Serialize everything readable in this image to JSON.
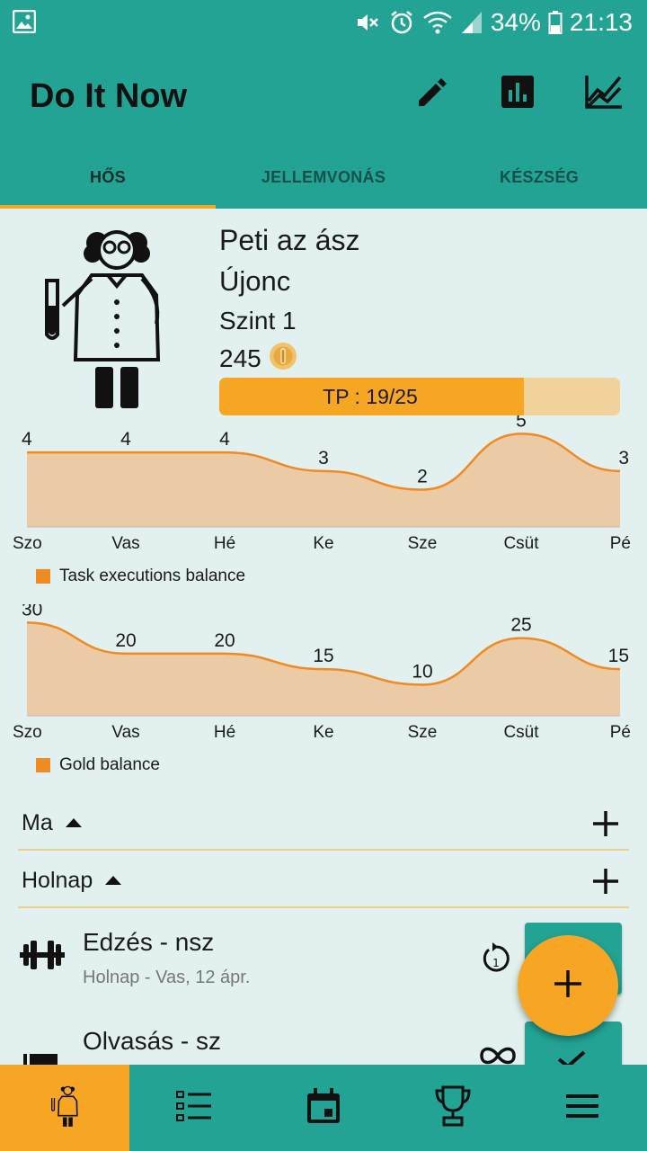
{
  "status_bar": {
    "battery": "34%",
    "time": "21:13"
  },
  "app_bar": {
    "title": "Do It Now",
    "actions": [
      "pencil-icon",
      "bar-chart-icon",
      "line-chart-icon"
    ]
  },
  "tabs": [
    {
      "label": "HŐS",
      "active": true
    },
    {
      "label": "JELLEMVONÁS",
      "active": false
    },
    {
      "label": "KÉSZSÉG",
      "active": false
    }
  ],
  "hero": {
    "name": "Peti az ász",
    "rank": "Újonc",
    "level": "Szint 1",
    "gold": "245",
    "xp_label": "TP : 19/25",
    "xp_fraction": 0.76
  },
  "chart_data": [
    {
      "type": "area",
      "categories": [
        "Szo",
        "Vas",
        "Hé",
        "Ke",
        "Sze",
        "Csüt",
        "Pé"
      ],
      "series": [
        {
          "name": "Task executions balance",
          "values": [
            4,
            4,
            4,
            3,
            2,
            5,
            3
          ]
        }
      ],
      "ylim": [
        0,
        5.5
      ],
      "legend": "bottom-left",
      "color": "#f08a22",
      "fill": "#ebcaa6"
    },
    {
      "type": "area",
      "categories": [
        "Szo",
        "Vas",
        "Hé",
        "Ke",
        "Sze",
        "Csüt",
        "Pé"
      ],
      "series": [
        {
          "name": "Gold balance",
          "values": [
            30,
            20,
            20,
            15,
            10,
            25,
            15
          ]
        }
      ],
      "ylim": [
        0,
        33
      ],
      "legend": "bottom-left",
      "color": "#f08a22",
      "fill": "#ebcaa6"
    }
  ],
  "sections": [
    {
      "label": "Ma"
    },
    {
      "label": "Holnap"
    }
  ],
  "tasks": [
    {
      "name": "Edzés - nsz",
      "subtitle": "Holnap - Vas, 12 ápr.",
      "icon": "dumbbell-icon",
      "repeat_icon": "repeat-once-icon"
    },
    {
      "name": "Olvasás - sz",
      "subtitle": "",
      "icon": "book-icon",
      "repeat_icon": "infinity-icon"
    }
  ],
  "bottom_nav": [
    "hero-icon",
    "task-list-icon",
    "calendar-icon",
    "trophy-icon",
    "menu-icon"
  ],
  "colors": {
    "primary": "#23a394",
    "accent": "#f7a623",
    "background": "#e2f1ef"
  }
}
